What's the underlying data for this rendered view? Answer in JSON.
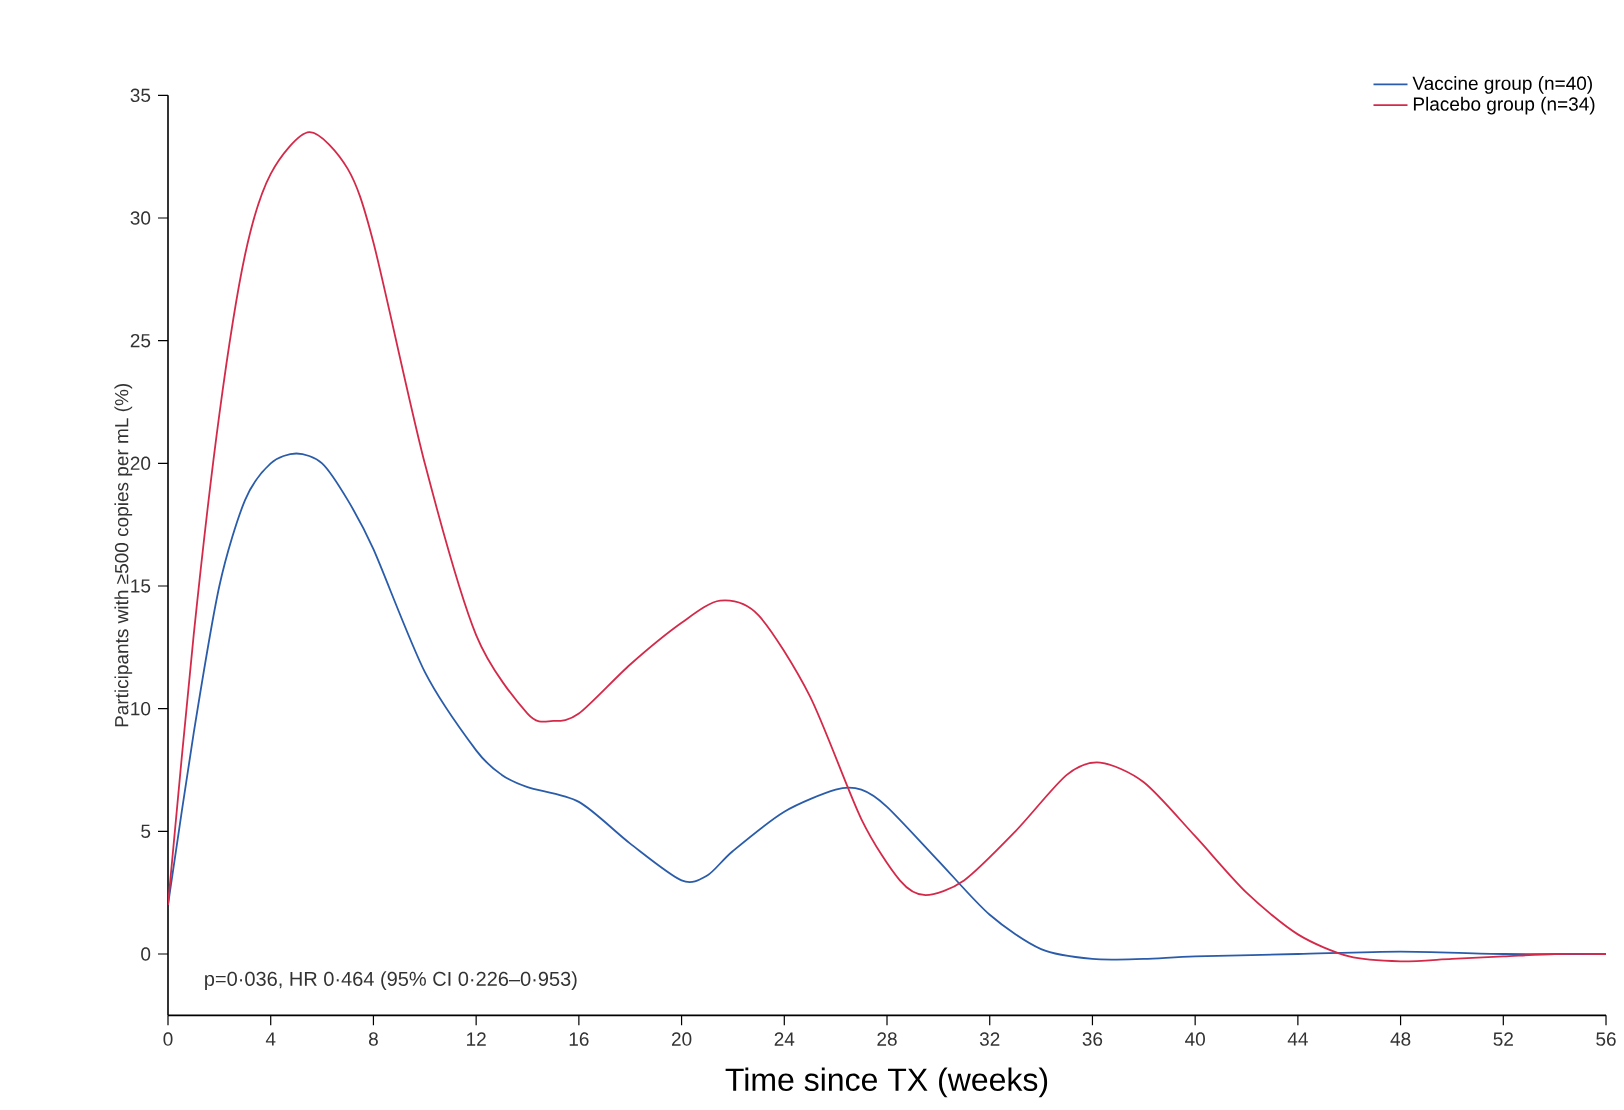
{
  "chart_data": {
    "type": "line",
    "xlabel": "Time since TX (weeks)",
    "ylabel": "Participants with ≥500 copies per mL (%)",
    "annotations": [
      "p=0·036, HR 0·464 (95% CI 0·226–0·953)"
    ],
    "xlim": [
      0,
      56
    ],
    "ylim": [
      -2.5,
      35
    ],
    "xticks": [
      0,
      4,
      8,
      12,
      16,
      20,
      24,
      28,
      32,
      36,
      40,
      44,
      48,
      52,
      56
    ],
    "yticks": [
      0,
      5,
      10,
      15,
      20,
      25,
      30,
      35
    ],
    "grid": false,
    "legend": "top right",
    "marker": "none",
    "line_style": "solid",
    "series": [
      {
        "name": "Vaccine group (n=40)",
        "color": "#2a5caa",
        "x": [
          0,
          1,
          2,
          3,
          4,
          5,
          6,
          7,
          8,
          10,
          12,
          13,
          14,
          16,
          18,
          20,
          21,
          22,
          24,
          26,
          27,
          28,
          30,
          32,
          34,
          36,
          38,
          40,
          44,
          48,
          52,
          56
        ],
        "values": [
          2,
          9,
          15,
          18.5,
          20,
          20.4,
          20,
          18.5,
          16.5,
          11.5,
          8.3,
          7.3,
          6.8,
          6.2,
          4.5,
          3,
          3.2,
          4.2,
          5.8,
          6.7,
          6.7,
          6,
          3.8,
          1.6,
          0.2,
          -0.2,
          -0.2,
          -0.1,
          0,
          0.1,
          0,
          0
        ]
      },
      {
        "name": "Placebo group (n=34)",
        "color": "#d42a4a",
        "x": [
          0,
          1,
          2,
          3,
          4,
          5.5,
          7,
          8,
          10,
          12,
          14,
          15,
          16,
          18,
          20,
          21.5,
          23,
          25,
          27,
          28.5,
          29.5,
          31,
          33,
          35,
          36.3,
          38,
          40,
          42,
          44,
          46,
          48,
          50,
          52,
          54,
          56
        ],
        "values": [
          2,
          13,
          22,
          28.5,
          31.8,
          33.5,
          32,
          29,
          20,
          13,
          9.8,
          9.5,
          9.8,
          11.8,
          13.5,
          14.4,
          13.8,
          10.5,
          5.5,
          3,
          2.4,
          3,
          5,
          7.3,
          7.8,
          7,
          4.8,
          2.5,
          0.8,
          -0.1,
          -0.3,
          -0.2,
          -0.1,
          0,
          0
        ]
      }
    ]
  }
}
